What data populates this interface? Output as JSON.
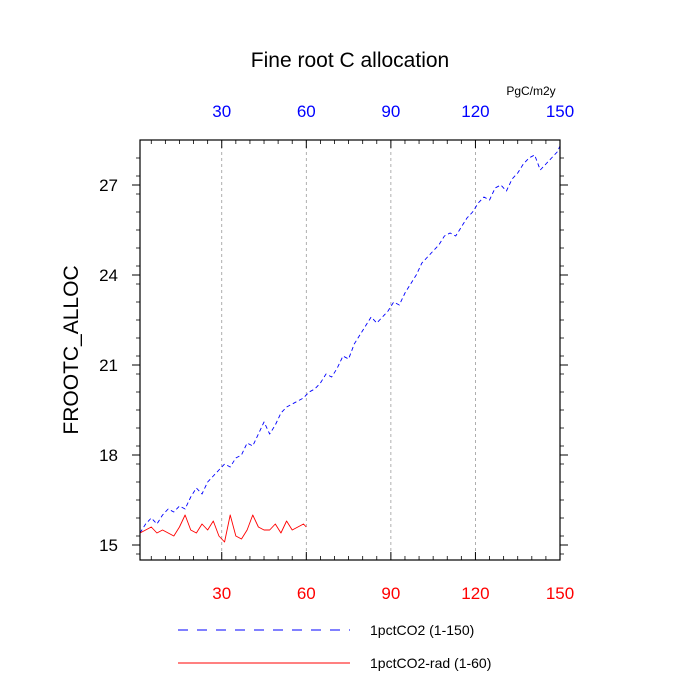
{
  "chart_data": {
    "type": "line",
    "title": "Fine root C allocation",
    "ylabel": "FROOTC_ALLOC",
    "units": "PgC/m2y",
    "xlim": [
      1,
      150
    ],
    "ylim": [
      14.5,
      28.5
    ],
    "x_ticks": [
      30,
      60,
      90,
      120,
      150
    ],
    "y_ticks": [
      15,
      18,
      21,
      24,
      27
    ],
    "x_minor_step": 5,
    "y_minor_step": 0.6,
    "colors": {
      "bottom_tick_labels": "#ff0000",
      "top_tick_labels": "#0000ff"
    },
    "series": [
      {
        "name": "1pctCO2 (1-150)",
        "color": "#0000ff",
        "dash": "dashed",
        "x": [
          1,
          3,
          5,
          7,
          9,
          11,
          13,
          15,
          17,
          19,
          21,
          23,
          25,
          27,
          29,
          31,
          33,
          35,
          37,
          39,
          41,
          43,
          45,
          47,
          49,
          51,
          53,
          55,
          57,
          59,
          61,
          63,
          65,
          67,
          69,
          71,
          73,
          75,
          77,
          79,
          81,
          83,
          85,
          87,
          89,
          91,
          93,
          95,
          97,
          99,
          101,
          103,
          105,
          107,
          109,
          111,
          113,
          115,
          117,
          119,
          121,
          123,
          125,
          127,
          129,
          131,
          133,
          135,
          137,
          139,
          141,
          143,
          145,
          147,
          149,
          150
        ],
        "values": [
          15.4,
          15.7,
          15.9,
          15.7,
          16.0,
          16.2,
          16.1,
          16.3,
          16.2,
          16.6,
          16.9,
          16.7,
          17.1,
          17.3,
          17.5,
          17.7,
          17.6,
          17.9,
          18.0,
          18.4,
          18.3,
          18.7,
          19.1,
          18.7,
          19.0,
          19.4,
          19.6,
          19.7,
          19.8,
          19.9,
          20.1,
          20.2,
          20.4,
          20.7,
          20.6,
          20.9,
          21.3,
          21.2,
          21.7,
          22.0,
          22.3,
          22.6,
          22.4,
          22.6,
          22.8,
          23.1,
          23.0,
          23.4,
          23.7,
          24.0,
          24.4,
          24.6,
          24.8,
          25.0,
          25.3,
          25.4,
          25.3,
          25.6,
          25.9,
          26.1,
          26.4,
          26.6,
          26.5,
          26.9,
          27.0,
          26.8,
          27.2,
          27.4,
          27.7,
          27.9,
          28.0,
          27.5,
          27.7,
          27.9,
          28.1,
          28.3
        ]
      },
      {
        "name": "1pctCO2-rad (1-60)",
        "color": "#ff0000",
        "dash": "solid",
        "x": [
          1,
          3,
          5,
          7,
          9,
          11,
          13,
          15,
          17,
          19,
          21,
          23,
          25,
          27,
          29,
          31,
          33,
          35,
          37,
          39,
          41,
          43,
          45,
          47,
          49,
          51,
          53,
          55,
          57,
          59,
          60
        ],
        "values": [
          15.4,
          15.5,
          15.6,
          15.4,
          15.5,
          15.4,
          15.3,
          15.6,
          16.0,
          15.5,
          15.4,
          15.7,
          15.5,
          15.8,
          15.3,
          15.1,
          16.0,
          15.3,
          15.2,
          15.5,
          16.0,
          15.6,
          15.5,
          15.5,
          15.7,
          15.4,
          15.8,
          15.5,
          15.6,
          15.7,
          15.6
        ]
      }
    ],
    "legend": "bottom"
  }
}
